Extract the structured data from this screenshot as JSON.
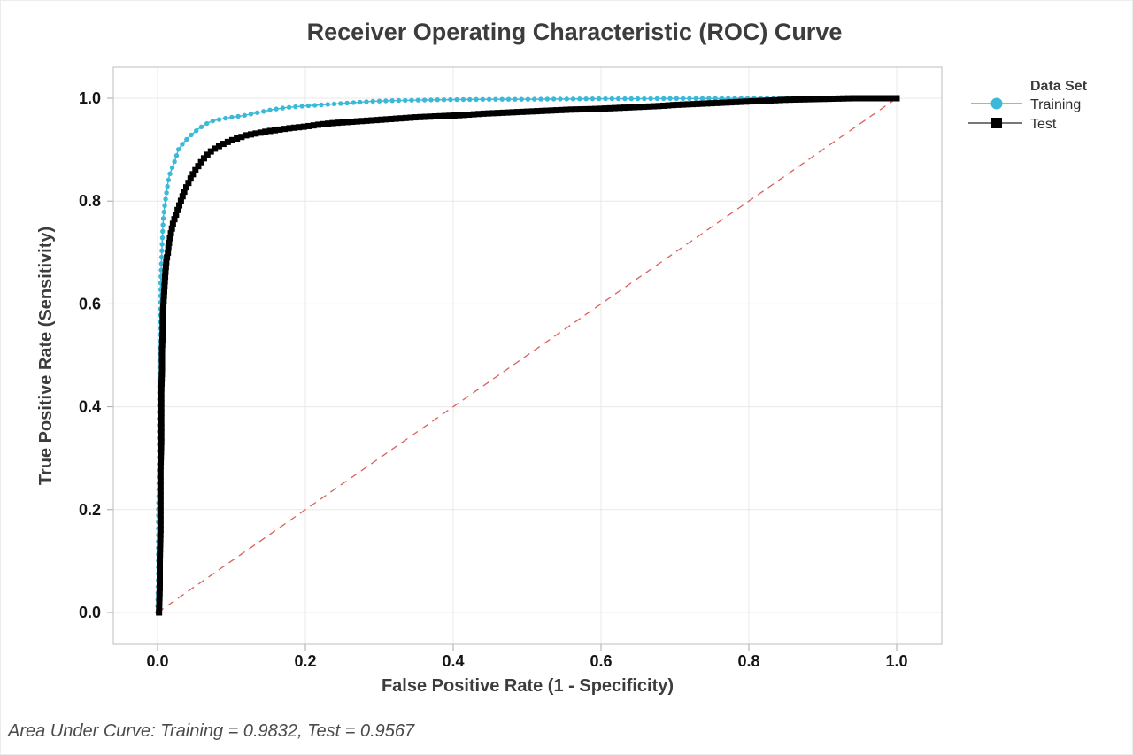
{
  "chart_data": {
    "type": "line",
    "title": "Receiver Operating Characteristic (ROC) Curve",
    "xlabel": "False Positive Rate (1 - Specificity)",
    "ylabel": "True Positive Rate (Sensitivity)",
    "xlim": [
      0,
      1
    ],
    "ylim": [
      0,
      1
    ],
    "xticks": [
      "0.0",
      "0.2",
      "0.4",
      "0.6",
      "0.8",
      "1.0"
    ],
    "yticks": [
      "0.0",
      "0.2",
      "0.4",
      "0.6",
      "0.8",
      "1.0"
    ],
    "grid": true,
    "colors": {
      "grid": "#e8e8e8",
      "border": "#bdbdbd",
      "tick": "#a8a8a8",
      "diagonal": "#dc5f5a",
      "training": "#3cb8d9",
      "test": "#000000",
      "test_legend_line": "#4a4a4a"
    },
    "reference_line": {
      "type": "diagonal",
      "style": "dashed",
      "from": [
        0,
        0
      ],
      "to": [
        1,
        1
      ]
    },
    "legend": {
      "title": "Data Set",
      "position": "right",
      "entries": [
        {
          "label": "Training",
          "marker": "circle",
          "color": "#3cb8d9"
        },
        {
          "label": "Test",
          "marker": "square",
          "color": "#000000"
        }
      ]
    },
    "series": [
      {
        "name": "Training",
        "marker": "circle",
        "color": "#3cb8d9",
        "auc": 0.9832,
        "points": [
          [
            0.0,
            0.0
          ],
          [
            0.001,
            0.08
          ],
          [
            0.001,
            0.18
          ],
          [
            0.002,
            0.28
          ],
          [
            0.002,
            0.38
          ],
          [
            0.003,
            0.46
          ],
          [
            0.003,
            0.52
          ],
          [
            0.004,
            0.58
          ],
          [
            0.004,
            0.63
          ],
          [
            0.005,
            0.67
          ],
          [
            0.006,
            0.71
          ],
          [
            0.007,
            0.745
          ],
          [
            0.008,
            0.77
          ],
          [
            0.01,
            0.795
          ],
          [
            0.012,
            0.815
          ],
          [
            0.014,
            0.835
          ],
          [
            0.016,
            0.85
          ],
          [
            0.019,
            0.862
          ],
          [
            0.022,
            0.873
          ],
          [
            0.025,
            0.885
          ],
          [
            0.028,
            0.9
          ],
          [
            0.032,
            0.908
          ],
          [
            0.036,
            0.915
          ],
          [
            0.04,
            0.921
          ],
          [
            0.045,
            0.928
          ],
          [
            0.05,
            0.934
          ],
          [
            0.055,
            0.94
          ],
          [
            0.06,
            0.945
          ],
          [
            0.068,
            0.952
          ],
          [
            0.075,
            0.956
          ],
          [
            0.085,
            0.959
          ],
          [
            0.095,
            0.962
          ],
          [
            0.105,
            0.964
          ],
          [
            0.115,
            0.966
          ],
          [
            0.125,
            0.969
          ],
          [
            0.135,
            0.972
          ],
          [
            0.145,
            0.975
          ],
          [
            0.155,
            0.978
          ],
          [
            0.165,
            0.98
          ],
          [
            0.175,
            0.982
          ],
          [
            0.19,
            0.984
          ],
          [
            0.21,
            0.986
          ],
          [
            0.23,
            0.988
          ],
          [
            0.25,
            0.99
          ],
          [
            0.27,
            0.992
          ],
          [
            0.29,
            0.994
          ],
          [
            0.31,
            0.995
          ],
          [
            0.34,
            0.996
          ],
          [
            0.38,
            0.997
          ],
          [
            0.42,
            0.9975
          ],
          [
            0.46,
            0.998
          ],
          [
            0.5,
            0.998
          ],
          [
            0.55,
            0.9985
          ],
          [
            0.6,
            0.999
          ],
          [
            0.65,
            0.999
          ],
          [
            0.7,
            0.9995
          ],
          [
            0.75,
            0.9995
          ],
          [
            0.8,
            1.0
          ],
          [
            0.85,
            1.0
          ],
          [
            0.88,
            1.0
          ]
        ]
      },
      {
        "name": "Test",
        "marker": "square",
        "color": "#000000",
        "auc": 0.9567,
        "points": [
          [
            0.002,
            0.0
          ],
          [
            0.003,
            0.05
          ],
          [
            0.003,
            0.1
          ],
          [
            0.004,
            0.16
          ],
          [
            0.004,
            0.22
          ],
          [
            0.004,
            0.28
          ],
          [
            0.005,
            0.33
          ],
          [
            0.005,
            0.38
          ],
          [
            0.005,
            0.43
          ],
          [
            0.006,
            0.47
          ],
          [
            0.006,
            0.51
          ],
          [
            0.007,
            0.545
          ],
          [
            0.007,
            0.575
          ],
          [
            0.008,
            0.6
          ],
          [
            0.009,
            0.625
          ],
          [
            0.01,
            0.648
          ],
          [
            0.011,
            0.668
          ],
          [
            0.012,
            0.685
          ],
          [
            0.014,
            0.7
          ],
          [
            0.015,
            0.715
          ],
          [
            0.017,
            0.73
          ],
          [
            0.019,
            0.744
          ],
          [
            0.021,
            0.757
          ],
          [
            0.024,
            0.77
          ],
          [
            0.027,
            0.782
          ],
          [
            0.03,
            0.794
          ],
          [
            0.033,
            0.806
          ],
          [
            0.036,
            0.818
          ],
          [
            0.04,
            0.83
          ],
          [
            0.044,
            0.842
          ],
          [
            0.048,
            0.853
          ],
          [
            0.052,
            0.862
          ],
          [
            0.057,
            0.872
          ],
          [
            0.062,
            0.882
          ],
          [
            0.068,
            0.891
          ],
          [
            0.074,
            0.899
          ],
          [
            0.082,
            0.906
          ],
          [
            0.09,
            0.912
          ],
          [
            0.1,
            0.918
          ],
          [
            0.11,
            0.923
          ],
          [
            0.12,
            0.928
          ],
          [
            0.135,
            0.932
          ],
          [
            0.15,
            0.936
          ],
          [
            0.165,
            0.939
          ],
          [
            0.18,
            0.942
          ],
          [
            0.2,
            0.945
          ],
          [
            0.22,
            0.949
          ],
          [
            0.24,
            0.952
          ],
          [
            0.26,
            0.954
          ],
          [
            0.29,
            0.957
          ],
          [
            0.32,
            0.96
          ],
          [
            0.35,
            0.963
          ],
          [
            0.38,
            0.965
          ],
          [
            0.41,
            0.967
          ],
          [
            0.44,
            0.97
          ],
          [
            0.47,
            0.972
          ],
          [
            0.5,
            0.974
          ],
          [
            0.53,
            0.976
          ],
          [
            0.56,
            0.978
          ],
          [
            0.59,
            0.979
          ],
          [
            0.62,
            0.981
          ],
          [
            0.65,
            0.983
          ],
          [
            0.68,
            0.985
          ],
          [
            0.7,
            0.987
          ],
          [
            0.73,
            0.989
          ],
          [
            0.76,
            0.991
          ],
          [
            0.79,
            0.993
          ],
          [
            0.82,
            0.995
          ],
          [
            0.85,
            0.997
          ],
          [
            0.88,
            0.998
          ],
          [
            0.91,
            0.999
          ],
          [
            0.94,
            1.0
          ],
          [
            1.0,
            1.0
          ]
        ]
      }
    ],
    "footnote": "Area Under Curve: Training = 0.9832, Test = 0.9567"
  }
}
